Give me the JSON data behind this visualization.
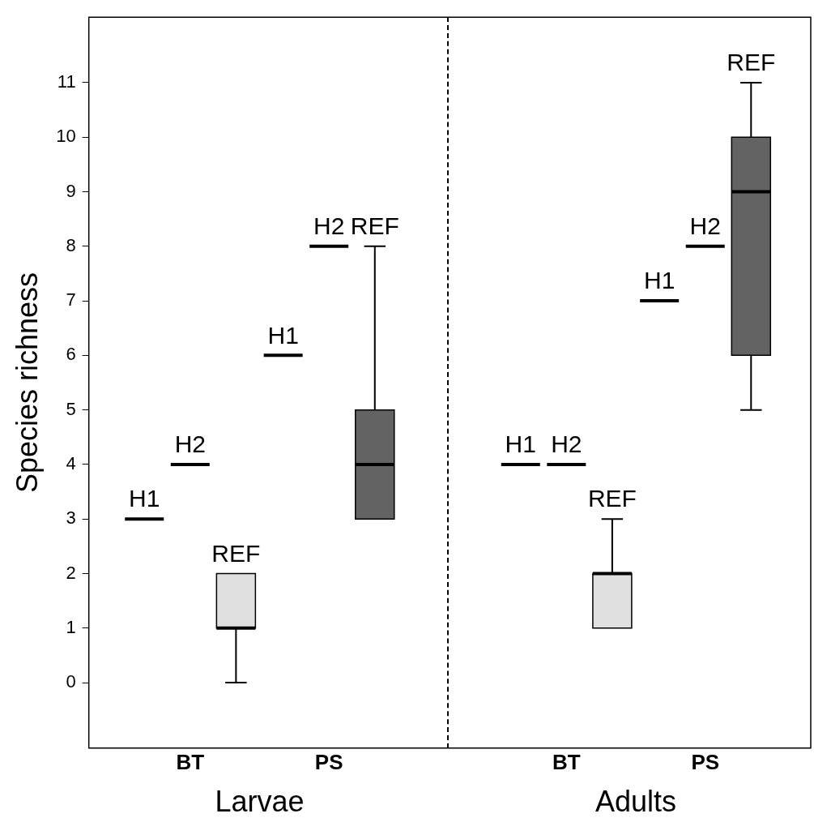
{
  "chart_data": {
    "type": "box",
    "ylabel": "Species richness",
    "categories": [
      "BT",
      "PS",
      "BT",
      "PS"
    ],
    "annotations": [
      "Larvae",
      "Adults"
    ],
    "ylim": [
      -1.2,
      12.2
    ],
    "yticks": [
      0,
      1,
      2,
      3,
      4,
      5,
      6,
      7,
      8,
      9,
      10,
      11
    ],
    "grid": false,
    "legend": false,
    "series": [
      {
        "name": "H1",
        "colors": [
          "#000000",
          "#000000",
          "#000000",
          "#000000"
        ],
        "boxes": [
          {
            "low": 3,
            "q1": 3,
            "median": 3,
            "q3": 3,
            "high": 3
          },
          {
            "low": 6,
            "q1": 6,
            "median": 6,
            "q3": 6,
            "high": 6
          },
          {
            "low": 4,
            "q1": 4,
            "median": 4,
            "q3": 4,
            "high": 4
          },
          {
            "low": 7,
            "q1": 7,
            "median": 7,
            "q3": 7,
            "high": 7
          }
        ]
      },
      {
        "name": "H2",
        "colors": [
          "#000000",
          "#000000",
          "#000000",
          "#000000"
        ],
        "boxes": [
          {
            "low": 4,
            "q1": 4,
            "median": 4,
            "q3": 4,
            "high": 4
          },
          {
            "low": 8,
            "q1": 8,
            "median": 8,
            "q3": 8,
            "high": 8
          },
          {
            "low": 4,
            "q1": 4,
            "median": 4,
            "q3": 4,
            "high": 4
          },
          {
            "low": 8,
            "q1": 8,
            "median": 8,
            "q3": 8,
            "high": 8
          }
        ]
      },
      {
        "name": "REF",
        "colors": [
          "#e0e0e0",
          "#636363",
          "#e0e0e0",
          "#636363"
        ],
        "boxes": [
          {
            "low": 0,
            "q1": 1,
            "median": 1,
            "q3": 2,
            "high": 2
          },
          {
            "low": 3,
            "q1": 3,
            "median": 4,
            "q3": 5,
            "high": 8
          },
          {
            "low": 1,
            "q1": 1,
            "median": 2,
            "q3": 2,
            "high": 3
          },
          {
            "low": 5,
            "q1": 6,
            "median": 9,
            "q3": 10,
            "high": 11
          }
        ]
      }
    ]
  }
}
